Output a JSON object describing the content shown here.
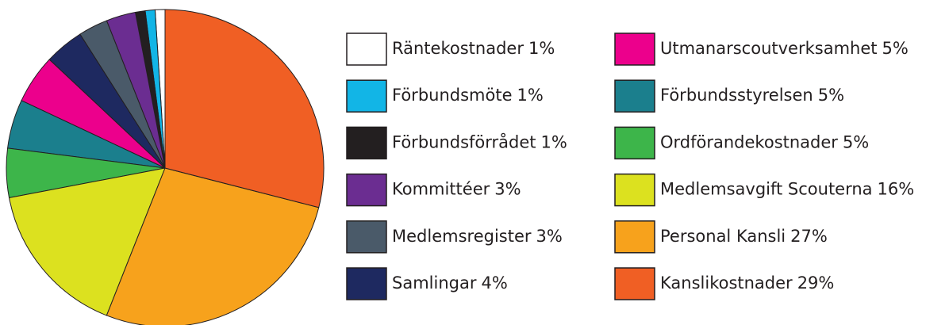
{
  "chart_data": {
    "type": "pie",
    "categories": [
      "Räntekostnader",
      "Förbundsmöte",
      "Förbundsförrådet",
      "Kommittéer",
      "Medlemsregister",
      "Samlingar",
      "Utmanarscoutverksamhet",
      "Förbundsstyrelsen",
      "Ordförandekostnader",
      "Medlemsavgift Scouterna",
      "Personal Kansli",
      "Kanslikostnader"
    ],
    "values": [
      1,
      1,
      1,
      3,
      3,
      4,
      5,
      5,
      5,
      16,
      27,
      29
    ],
    "value_labels": [
      "1%",
      "1%",
      "1%",
      "3%",
      "3%",
      "4%",
      "5%",
      "5%",
      "5%",
      "16%",
      "27%",
      "29%"
    ],
    "colors": [
      "#ffffff",
      "#12b5e6",
      "#231f20",
      "#6b2d91",
      "#4a5a69",
      "#1e2960",
      "#ec008c",
      "#1b7f8d",
      "#3db54a",
      "#dce11f",
      "#f7a21c",
      "#f05f24"
    ],
    "legend": "right"
  }
}
